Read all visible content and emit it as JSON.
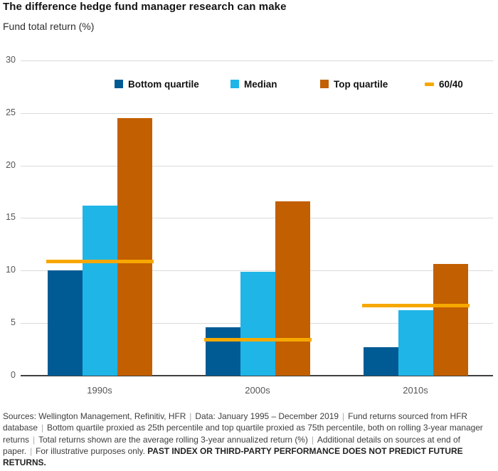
{
  "header": {
    "title": "The difference hedge fund manager research can make",
    "subtitle": "Fund total return (%)"
  },
  "legend": [
    {
      "label": "Bottom quartile",
      "color": "#005B94",
      "marker": "square"
    },
    {
      "label": "Median",
      "color": "#1FB5E7",
      "marker": "square"
    },
    {
      "label": "Top quartile",
      "color": "#C25F00",
      "marker": "square"
    },
    {
      "label": "60/40",
      "color": "#F6A800",
      "marker": "dash"
    }
  ],
  "chart_data": {
    "type": "bar",
    "title": "The difference hedge fund manager research can make",
    "ylabel": "Fund total return (%)",
    "categories": [
      "1990s",
      "2000s",
      "2010s"
    ],
    "series": [
      {
        "name": "Bottom quartile",
        "color": "#005B94",
        "values": [
          10.0,
          4.6,
          2.7
        ]
      },
      {
        "name": "Median",
        "color": "#1FB5E7",
        "values": [
          16.2,
          9.9,
          6.2
        ]
      },
      {
        "name": "Top quartile",
        "color": "#C25F00",
        "values": [
          24.5,
          16.6,
          10.6
        ]
      }
    ],
    "overlay_lines": {
      "name": "60/40",
      "color": "#F6A800",
      "values": [
        10.9,
        3.4,
        6.7
      ]
    },
    "ylim": [
      0,
      30
    ],
    "yticks": [
      0,
      5,
      10,
      15,
      20,
      25,
      30
    ],
    "grid": true,
    "legend_position": "top-inside"
  },
  "colors": {
    "gridline": "#dadada",
    "axis": "#404040",
    "tick_text": "#565656",
    "footer_text": "#3d3d3d"
  },
  "footer": {
    "separator": "|",
    "segments": [
      "Sources: Wellington Management, Refinitiv, HFR",
      "Data: January 1995 – December 2019",
      "Fund returns sourced from HFR database",
      "Bottom quartile proxied as 25th percentile and top quartile proxied as 75th percentile, both on rolling 3-year manager returns",
      "Total returns shown are the average rolling 3-year annualized return (%)",
      "Additional details on sources at end of paper.",
      "For illustrative purposes only."
    ],
    "bold_tail": "PAST INDEX OR THIRD-PARTY PERFORMANCE DOES NOT PREDICT FUTURE RETURNS."
  }
}
